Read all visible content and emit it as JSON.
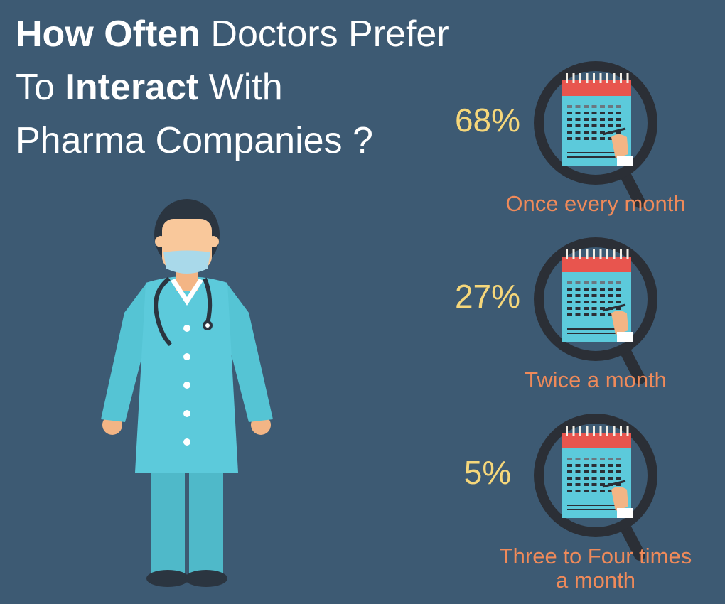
{
  "header": {
    "title_lines": [
      [
        {
          "text": "How Often",
          "bold": true
        },
        {
          "text": " Doctors Prefer",
          "bold": false
        }
      ],
      [
        {
          "text": "To ",
          "bold": false
        },
        {
          "text": "Interact",
          "bold": true
        },
        {
          "text": " With",
          "bold": false
        }
      ],
      [
        {
          "text": "Pharma Companies ?",
          "bold": false
        }
      ]
    ]
  },
  "items": [
    {
      "percent": "68%",
      "label_lines": [
        "Once every month"
      ]
    },
    {
      "percent": "27%",
      "label_lines": [
        "Twice a month"
      ]
    },
    {
      "percent": "5%",
      "label_lines": [
        "Three to Four times",
        "a month"
      ]
    }
  ]
}
